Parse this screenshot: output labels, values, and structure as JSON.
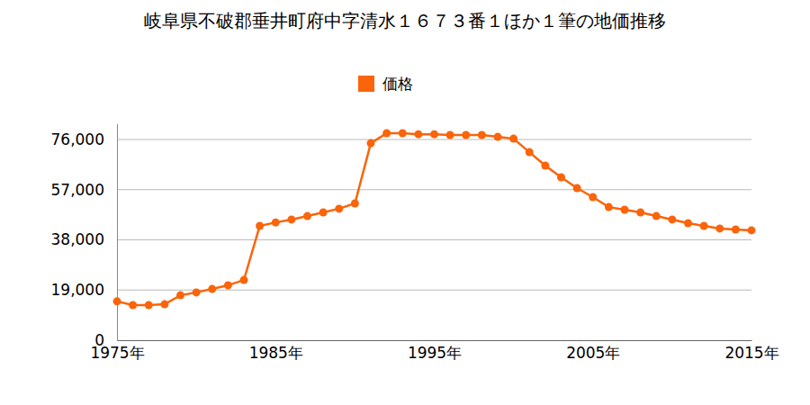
{
  "chart_data": {
    "type": "line",
    "title": "岐阜県不破郡垂井町府中字清水１６７３番１ほか１筆の地価推移",
    "x": [
      1975,
      1976,
      1977,
      1978,
      1979,
      1980,
      1981,
      1982,
      1983,
      1984,
      1985,
      1986,
      1987,
      1988,
      1989,
      1990,
      1991,
      1992,
      1993,
      1994,
      1995,
      1996,
      1997,
      1998,
      1999,
      2000,
      2001,
      2002,
      2003,
      2004,
      2005,
      2006,
      2007,
      2008,
      2009,
      2010,
      2011,
      2012,
      2013,
      2014,
      2015
    ],
    "series": [
      {
        "name": "価格",
        "color": "#fa640a",
        "marker": "circle",
        "values": [
          14700,
          13300,
          13300,
          13600,
          17000,
          18100,
          19400,
          20800,
          22800,
          43300,
          44600,
          45700,
          47000,
          48400,
          49800,
          51800,
          74600,
          78400,
          78400,
          78000,
          78000,
          77700,
          77700,
          77700,
          77000,
          76300,
          71200,
          66100,
          61700,
          57600,
          54200,
          50400,
          49400,
          48400,
          47000,
          45700,
          44300,
          43300,
          42300,
          41900,
          41600
        ]
      }
    ],
    "xlim": [
      1975,
      2015
    ],
    "xticks": [
      {
        "value": 1975,
        "label": "1975年"
      },
      {
        "value": 1985,
        "label": "1985年"
      },
      {
        "value": 1995,
        "label": "1995年"
      },
      {
        "value": 2005,
        "label": "2005年"
      },
      {
        "value": 2015,
        "label": "2015年"
      }
    ],
    "ylim": [
      0,
      82000
    ],
    "yticks": [
      0,
      {
        "value": 19000,
        "label": "19,000"
      },
      {
        "value": 38000,
        "label": "38,000"
      },
      {
        "value": 57000,
        "label": "57,000"
      },
      {
        "value": 76000,
        "label": "76,000"
      }
    ],
    "grid": true,
    "legend": "top"
  }
}
